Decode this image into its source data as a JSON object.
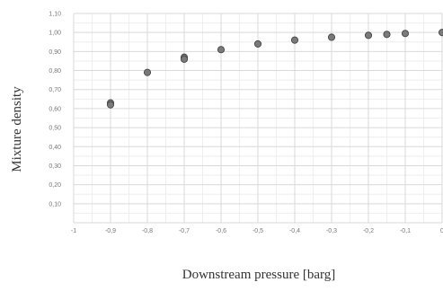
{
  "chart_data": {
    "type": "scatter",
    "title": "",
    "xlabel": "Downstream pressure [barg]",
    "ylabel": "Mixture density",
    "xlim": [
      -1,
      0
    ],
    "ylim": [
      0,
      1.1
    ],
    "x_ticks": [
      -1,
      -0.9,
      -0.8,
      -0.7,
      -0.6,
      -0.5,
      -0.4,
      -0.3,
      -0.2,
      -0.1,
      0
    ],
    "x_tick_labels": [
      "-1",
      "-0,9",
      "-0,8",
      "-0,7",
      "-0,6",
      "-0,5",
      "-0,4",
      "-0,3",
      "-0,2",
      "-0,1",
      "0"
    ],
    "y_ticks": [
      0,
      0.1,
      0.2,
      0.3,
      0.4,
      0.5,
      0.6,
      0.7,
      0.8,
      0.9,
      1.0,
      1.1
    ],
    "y_tick_labels": [
      "",
      "0,10",
      "0,20",
      "0,30",
      "0,40",
      "0,50",
      "0,60",
      "0,70",
      "0,80",
      "0,90",
      "1,00",
      "1,10"
    ],
    "grid": true,
    "legend": "none",
    "marker_color": "#7a7a7a",
    "marker_stroke": "#444444",
    "series": [
      {
        "points": [
          {
            "x": -0.9,
            "y": 0.63
          },
          {
            "x": -0.9,
            "y": 0.62
          },
          {
            "x": -0.8,
            "y": 0.79
          },
          {
            "x": -0.7,
            "y": 0.87
          },
          {
            "x": -0.7,
            "y": 0.86
          },
          {
            "x": -0.6,
            "y": 0.91
          },
          {
            "x": -0.5,
            "y": 0.94
          },
          {
            "x": -0.4,
            "y": 0.96
          },
          {
            "x": -0.3,
            "y": 0.975
          },
          {
            "x": -0.2,
            "y": 0.985
          },
          {
            "x": -0.15,
            "y": 0.99
          },
          {
            "x": -0.1,
            "y": 0.995
          },
          {
            "x": 0,
            "y": 1.0
          }
        ]
      }
    ]
  }
}
